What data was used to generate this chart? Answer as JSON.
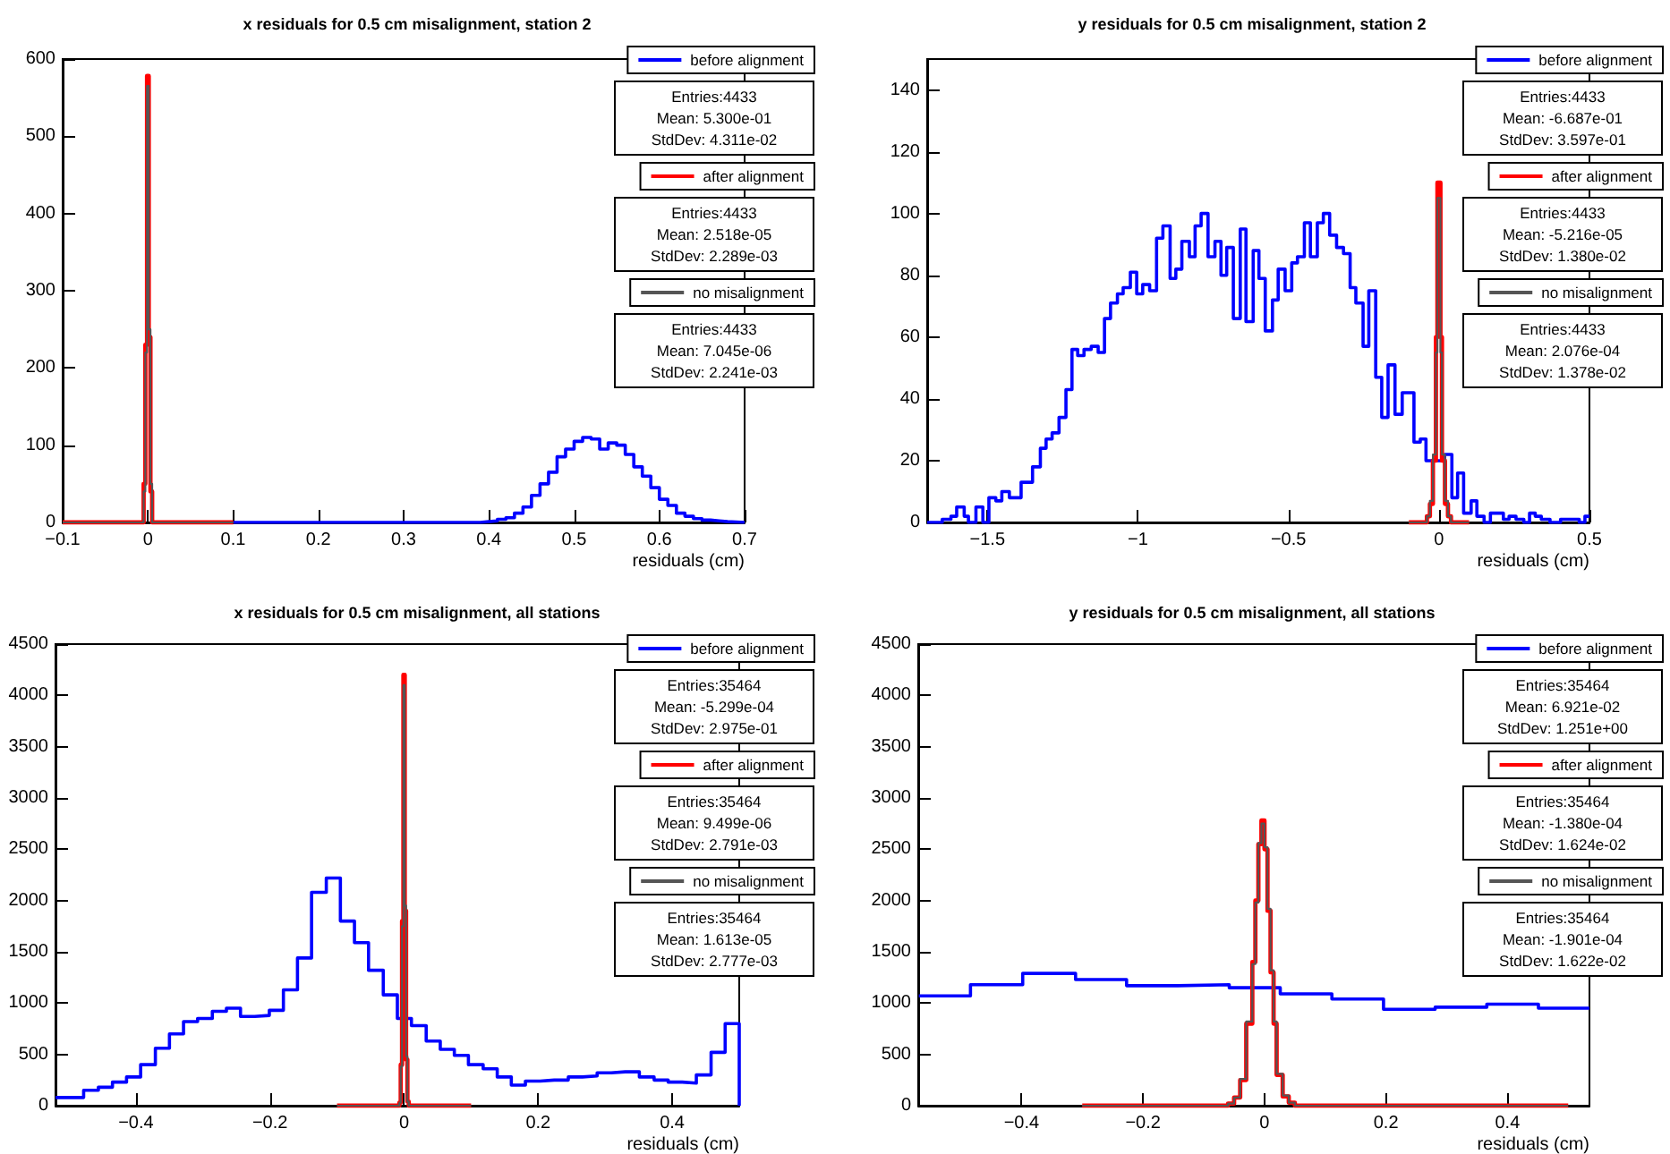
{
  "chart_data": [
    {
      "type": "step",
      "title": "x residuals for 0.5 cm misalignment, station 2",
      "xlabel": "residuals (cm)",
      "xlim": [
        -0.1,
        0.7
      ],
      "xticks": [
        -0.1,
        0,
        0.1,
        0.2,
        0.3,
        0.4,
        0.5,
        0.6,
        0.7
      ],
      "ylim": [
        0,
        600
      ],
      "yticks": [
        0,
        100,
        200,
        300,
        400,
        500,
        600
      ],
      "grid": false,
      "legend": "top right",
      "marker": "none",
      "line_style": "solid",
      "annotations": [
        "Entries:4433",
        "Mean: 5.300e-01",
        "StdDev: 4.311e-02",
        "Entries:4433",
        "Mean: 2.518e-05",
        "StdDev: 2.289e-03",
        "Entries:4433",
        "Mean: 7.045e-06",
        "StdDev: 2.241e-03"
      ],
      "series": [
        {
          "name": "before alignment",
          "color": "#0000ff",
          "x": [
            0.1,
            0.39,
            0.4,
            0.41,
            0.42,
            0.43,
            0.44,
            0.45,
            0.46,
            0.47,
            0.48,
            0.49,
            0.5,
            0.51,
            0.52,
            0.53,
            0.54,
            0.55,
            0.56,
            0.57,
            0.58,
            0.59,
            0.6,
            0.61,
            0.62,
            0.63,
            0.64,
            0.65,
            0.66,
            0.67,
            0.68,
            0.7
          ],
          "values": [
            0,
            1,
            2,
            4,
            6,
            12,
            20,
            35,
            50,
            65,
            85,
            95,
            105,
            110,
            108,
            95,
            103,
            100,
            88,
            72,
            60,
            45,
            30,
            22,
            12,
            8,
            5,
            3,
            2,
            1,
            0,
            0
          ]
        },
        {
          "name": "after alignment",
          "color": "#ff0000",
          "x": [
            -0.1,
            -0.005,
            -0.003,
            -0.001,
            0.001,
            0.003,
            0.005,
            0.1
          ],
          "values": [
            0,
            50,
            230,
            578,
            240,
            40,
            0,
            0
          ]
        },
        {
          "name": "no misalignment",
          "color": "#555555",
          "x": [
            -0.1,
            -0.005,
            -0.003,
            -0.001,
            0.001,
            0.003,
            0.005,
            0.1
          ],
          "values": [
            0,
            40,
            220,
            565,
            250,
            50,
            0,
            0
          ]
        }
      ]
    },
    {
      "type": "step",
      "title": "y residuals for 0.5 cm misalignment, station 2",
      "xlabel": "residuals (cm)",
      "xlim": [
        -1.7,
        0.5
      ],
      "xticks": [
        -1.5,
        -1,
        -0.5,
        0,
        0.5
      ],
      "ylim": [
        0,
        150
      ],
      "yticks": [
        0,
        20,
        40,
        60,
        80,
        100,
        120,
        140
      ],
      "grid": false,
      "legend": "top right",
      "marker": "none",
      "line_style": "solid",
      "annotations": [
        "Entries:4433",
        "Mean: -6.687e-01",
        "StdDev: 3.597e-01",
        "Entries:4433",
        "Mean: -5.216e-05",
        "StdDev: 1.380e-02",
        "Entries:4433",
        "Mean: 2.076e-04",
        "StdDev: 1.378e-02"
      ],
      "series": [
        {
          "name": "before alignment",
          "color": "#0000ff",
          "x": [
            -1.7,
            -1.65,
            -1.621,
            -1.602,
            -1.577,
            -1.563,
            -1.538,
            -1.515,
            -1.495,
            -1.472,
            -1.452,
            -1.427,
            -1.388,
            -1.35,
            -1.324,
            -1.305,
            -1.285,
            -1.262,
            -1.239,
            -1.219,
            -1.2,
            -1.179,
            -1.155,
            -1.132,
            -1.111,
            -1.091,
            -1.068,
            -1.049,
            -1.025,
            -1.004,
            -0.984,
            -0.961,
            -0.938,
            -0.917,
            -0.893,
            -0.874,
            -0.854,
            -0.829,
            -0.81,
            -0.79,
            -0.767,
            -0.744,
            -0.724,
            -0.705,
            -0.683,
            -0.66,
            -0.641,
            -0.617,
            -0.598,
            -0.577,
            -0.553,
            -0.534,
            -0.511,
            -0.489,
            -0.47,
            -0.447,
            -0.427,
            -0.404,
            -0.384,
            -0.363,
            -0.34,
            -0.317,
            -0.295,
            -0.276,
            -0.252,
            -0.233,
            -0.21,
            -0.19,
            -0.169,
            -0.146,
            -0.122,
            -0.083,
            -0.062,
            -0.043,
            0.019,
            0.043,
            0.062,
            0.082,
            0.107,
            0.126,
            0.15,
            0.171,
            0.214,
            0.233,
            0.256,
            0.282,
            0.301,
            0.32,
            0.34,
            0.369,
            0.404,
            0.466,
            0.485,
            0.5
          ],
          "values": [
            0,
            1,
            2,
            5,
            2,
            0,
            5,
            0,
            8,
            7,
            10,
            8,
            13,
            18,
            24,
            27,
            29,
            34,
            43,
            56,
            54,
            56,
            57,
            55,
            66,
            71,
            74,
            76,
            81,
            74,
            77,
            75,
            92,
            96,
            79,
            82,
            91,
            86,
            96,
            100,
            86,
            91,
            80,
            89,
            66,
            95,
            65,
            88,
            79,
            62,
            72,
            82,
            75,
            84,
            86,
            97,
            86,
            97,
            100,
            93,
            89,
            87,
            76,
            71,
            57,
            75,
            47,
            34,
            51,
            35,
            42,
            26,
            27,
            20,
            22,
            8,
            16,
            3,
            7,
            2,
            0,
            3,
            1,
            2,
            1,
            0,
            3,
            2,
            1,
            0,
            1,
            0,
            2,
            2
          ]
        },
        {
          "name": "after alignment",
          "color": "#ff0000",
          "x": [
            -0.1,
            -0.04,
            -0.03,
            -0.02,
            -0.01,
            -0.005,
            0.005,
            0.01,
            0.02,
            0.03,
            0.04,
            0.1
          ],
          "values": [
            0,
            2,
            6,
            20,
            60,
            110,
            60,
            20,
            6,
            2,
            0,
            0
          ]
        },
        {
          "name": "no misalignment",
          "color": "#555555",
          "x": [
            -0.1,
            -0.04,
            -0.03,
            -0.02,
            -0.01,
            -0.005,
            0.005,
            0.01,
            0.02,
            0.03,
            0.04,
            0.1
          ],
          "values": [
            0,
            2,
            7,
            22,
            55,
            105,
            55,
            22,
            7,
            2,
            0,
            0
          ]
        }
      ]
    },
    {
      "type": "step",
      "title": "x residuals for 0.5 cm misalignment, all stations",
      "xlabel": "residuals (cm)",
      "xlim": [
        -0.52,
        0.5
      ],
      "xticks": [
        -0.4,
        -0.2,
        0,
        0.2,
        0.4
      ],
      "ylim": [
        0,
        4500
      ],
      "yticks": [
        0,
        500,
        1000,
        1500,
        2000,
        2500,
        3000,
        3500,
        4000,
        4500
      ],
      "grid": false,
      "legend": "top right",
      "marker": "none",
      "line_style": "solid",
      "annotations": [
        "Entries:35464",
        "Mean: -5.299e-04",
        "StdDev: 2.975e-01",
        "Entries:35464",
        "Mean: 9.499e-06",
        "StdDev: 2.791e-03",
        "Entries:35464",
        "Mean: 1.613e-05",
        "StdDev: 2.777e-03"
      ],
      "series": [
        {
          "name": "before alignment",
          "color": "#0000ff",
          "x": [
            -0.52,
            -0.499,
            -0.478,
            -0.456,
            -0.435,
            -0.414,
            -0.393,
            -0.371,
            -0.35,
            -0.329,
            -0.308,
            -0.286,
            -0.265,
            -0.244,
            -0.223,
            -0.201,
            -0.18,
            -0.159,
            -0.138,
            -0.116,
            -0.095,
            -0.074,
            -0.053,
            -0.031,
            -0.01,
            0.011,
            0.033,
            0.054,
            0.075,
            0.096,
            0.118,
            0.139,
            0.16,
            0.181,
            0.203,
            0.224,
            0.245,
            0.266,
            0.288,
            0.309,
            0.33,
            0.351,
            0.373,
            0.394,
            0.415,
            0.436,
            0.458,
            0.479,
            0.5
          ],
          "values": [
            80,
            80,
            150,
            180,
            230,
            280,
            400,
            560,
            700,
            820,
            850,
            920,
            950,
            870,
            880,
            930,
            1130,
            1440,
            2080,
            2220,
            1800,
            1590,
            1320,
            1080,
            850,
            780,
            630,
            550,
            490,
            400,
            360,
            280,
            200,
            240,
            250,
            250,
            280,
            290,
            320,
            330,
            330,
            280,
            250,
            230,
            220,
            300,
            520,
            800,
            0
          ]
        },
        {
          "name": "after alignment",
          "color": "#ff0000",
          "x": [
            -0.1,
            -0.007,
            -0.005,
            -0.003,
            -0.001,
            0.001,
            0.003,
            0.005,
            0.007,
            0.1
          ],
          "values": [
            0,
            30,
            400,
            1800,
            4200,
            1900,
            450,
            40,
            0,
            0
          ]
        },
        {
          "name": "no misalignment",
          "color": "#555555",
          "x": [
            -0.1,
            -0.007,
            -0.005,
            -0.003,
            -0.001,
            0.001,
            0.003,
            0.005,
            0.007,
            0.1
          ],
          "values": [
            0,
            30,
            380,
            1750,
            4100,
            1950,
            480,
            40,
            0,
            0
          ]
        }
      ]
    },
    {
      "type": "step",
      "title": "y residuals for 0.5 cm misalignment, all stations",
      "xlabel": "residuals (cm)",
      "xlim": [
        -0.57,
        0.535
      ],
      "xticks": [
        -0.4,
        -0.2,
        0,
        0.2,
        0.4
      ],
      "ylim": [
        0,
        4500
      ],
      "yticks": [
        0,
        500,
        1000,
        1500,
        2000,
        2500,
        3000,
        3500,
        4000,
        4500
      ],
      "grid": false,
      "legend": "top right",
      "marker": "none",
      "line_style": "solid",
      "annotations": [
        "Entries:35464",
        "Mean: 6.921e-02",
        "StdDev: 1.251e+00",
        "Entries:35464",
        "Mean: -1.380e-04",
        "StdDev: 1.624e-02",
        "Entries:35464",
        "Mean: -1.901e-04",
        "StdDev: 1.622e-02"
      ],
      "series": [
        {
          "name": "before alignment",
          "color": "#0000ff",
          "x": [
            -0.569,
            -0.484,
            -0.398,
            -0.311,
            -0.227,
            -0.143,
            -0.058,
            0.026,
            0.111,
            0.196,
            0.281,
            0.366,
            0.451,
            0.535
          ],
          "values": [
            1070,
            1180,
            1290,
            1230,
            1170,
            1180,
            1150,
            1090,
            1040,
            940,
            960,
            990,
            950,
            950
          ]
        },
        {
          "name": "after alignment",
          "color": "#ff0000",
          "x": [
            -0.3,
            -0.06,
            -0.05,
            -0.04,
            -0.03,
            -0.02,
            -0.015,
            -0.01,
            -0.005,
            0,
            0.005,
            0.01,
            0.015,
            0.02,
            0.03,
            0.04,
            0.05,
            0.06,
            0.5
          ],
          "values": [
            0,
            20,
            80,
            250,
            800,
            1400,
            2000,
            2550,
            2780,
            2500,
            1900,
            1300,
            800,
            300,
            90,
            30,
            0,
            0,
            0
          ]
        },
        {
          "name": "no misalignment",
          "color": "#555555",
          "x": [
            -0.3,
            -0.06,
            -0.05,
            -0.04,
            -0.03,
            -0.02,
            -0.015,
            -0.01,
            -0.005,
            0,
            0.005,
            0.01,
            0.015,
            0.02,
            0.03,
            0.04,
            0.05,
            0.06,
            0.5
          ],
          "values": [
            0,
            20,
            80,
            260,
            820,
            1380,
            1980,
            2560,
            2750,
            2520,
            1920,
            1320,
            820,
            310,
            100,
            30,
            0,
            0,
            0
          ]
        }
      ]
    }
  ]
}
